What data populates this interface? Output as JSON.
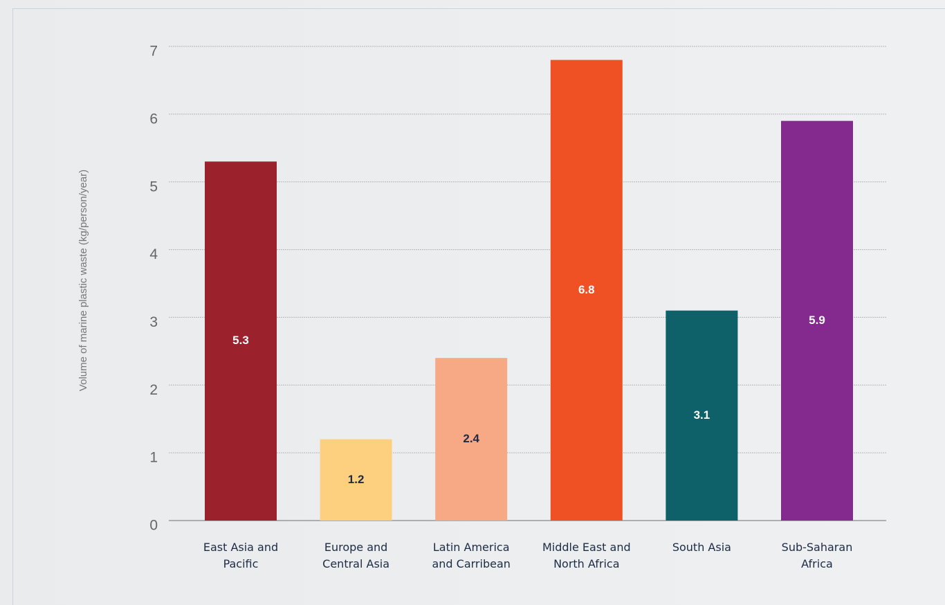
{
  "chart_data": {
    "type": "bar",
    "y_label": "Volume of marine plastic waste (kg/person/year)",
    "categories": [
      "East Asia and Pacific",
      "Europe and Central Asia",
      "Latin America and Carribean",
      "Middle East and North Africa",
      "South Asia",
      "Sub-Saharan Africa"
    ],
    "values": [
      5.3,
      1.2,
      2.4,
      6.8,
      3.1,
      5.9
    ],
    "colors": [
      "#9b222c",
      "#fdd07f",
      "#f7a986",
      "#ef5024",
      "#0e6168",
      "#842a8e"
    ],
    "ylim": [
      0,
      7
    ],
    "yticks": [
      0,
      1,
      2,
      3,
      4,
      5,
      6,
      7
    ],
    "grid": true
  }
}
